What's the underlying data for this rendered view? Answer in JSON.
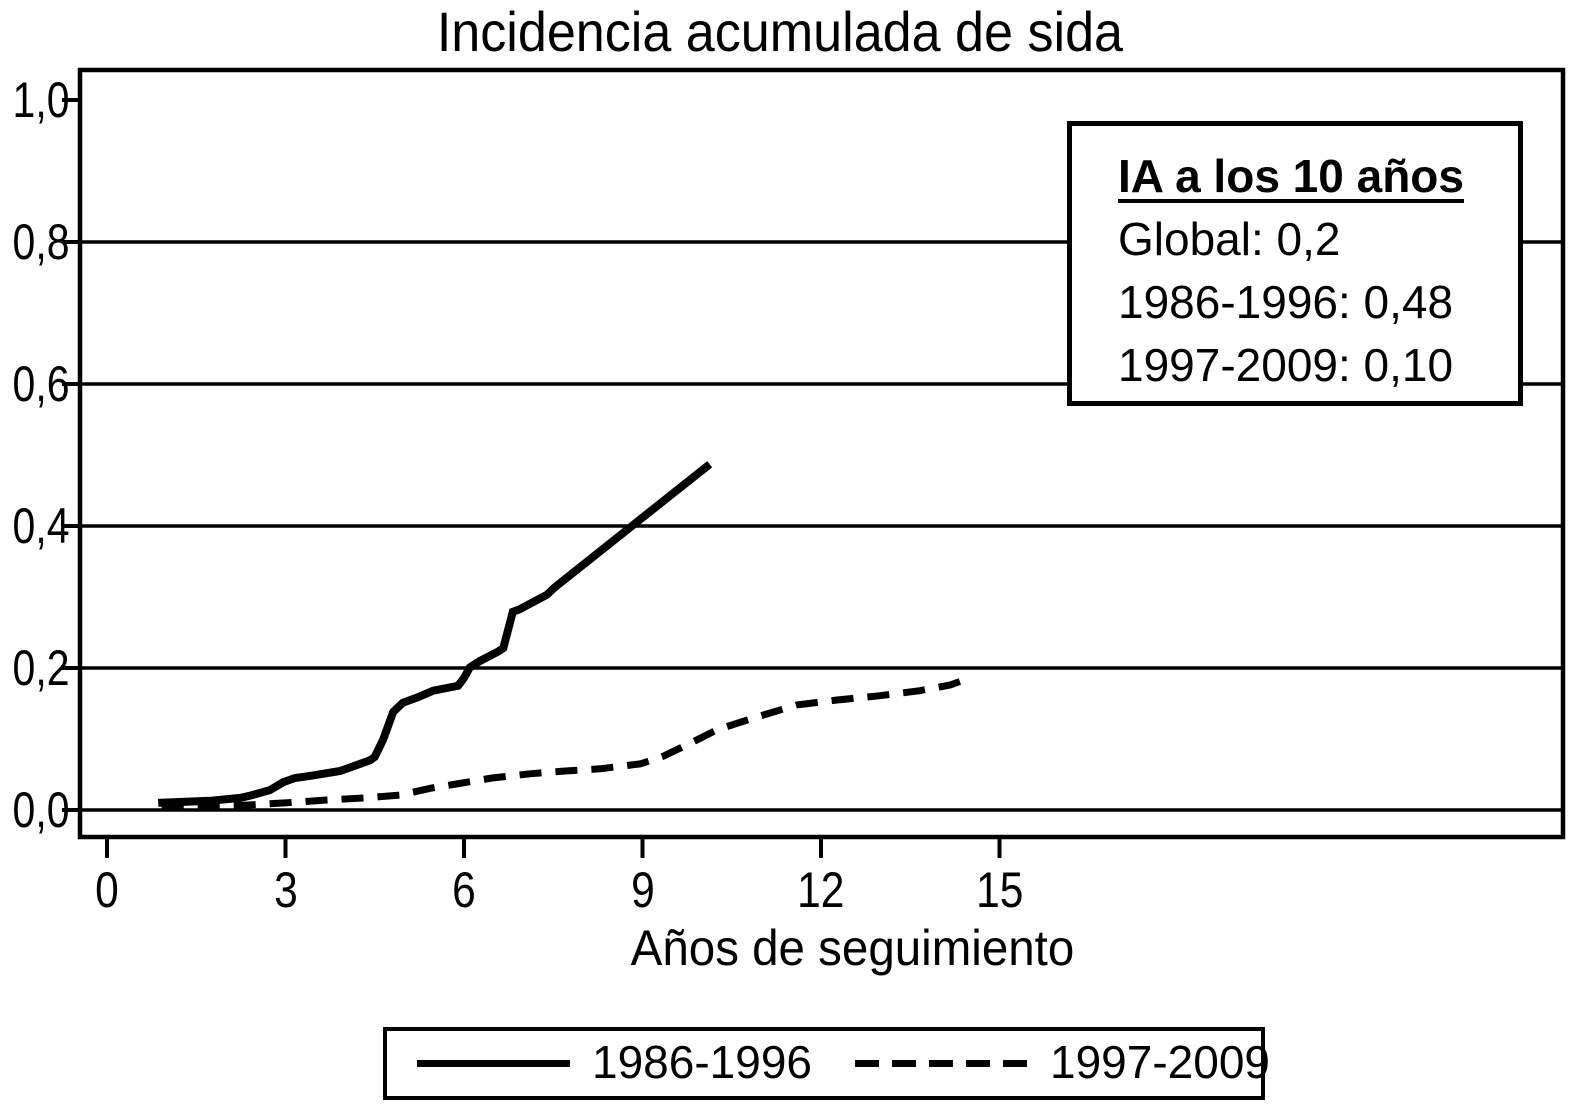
{
  "chart": {
    "title": "Incidencia acumulada de sida",
    "xlabel": "Años de seguimiento"
  },
  "annotation": {
    "title": "IA a los 10 años",
    "lines": [
      "Global: 0,2",
      "1986-1996: 0,48",
      "1997-2009: 0,10"
    ]
  },
  "legend": {
    "items": [
      {
        "label": "1986-1996",
        "style": "solid"
      },
      {
        "label": "1997-2009",
        "style": "dashed"
      }
    ]
  },
  "colors": {
    "foreground": "#000000",
    "background": "#ffffff"
  },
  "chart_data": {
    "type": "line",
    "title": "Incidencia acumulada de sida",
    "xlabel": "Años de seguimiento",
    "ylabel": "",
    "xlim": [
      0,
      24.5
    ],
    "ylim": [
      0.0,
      1.0
    ],
    "grid": "horizontal",
    "legend_position": "bottom",
    "xticks": [
      0,
      3,
      6,
      9,
      12,
      15
    ],
    "yticks": [
      {
        "value": 1.0,
        "label": "1,0",
        "grid": false
      },
      {
        "value": 0.8,
        "label": "0,8",
        "grid": true
      },
      {
        "value": 0.6,
        "label": "0,6",
        "grid": true
      },
      {
        "value": 0.4,
        "label": "0,4",
        "grid": true
      },
      {
        "value": 0.2,
        "label": "0,2",
        "grid": true
      },
      {
        "value": 0.0,
        "label": "0,0",
        "grid": true
      }
    ],
    "series": [
      {
        "name": "1986-1996",
        "style": "solid",
        "points": [
          [
            0.86,
            0.01
          ],
          [
            1.73,
            0.013
          ],
          [
            2.24,
            0.017
          ],
          [
            2.44,
            0.021
          ],
          [
            2.74,
            0.028
          ],
          [
            2.96,
            0.039
          ],
          [
            3.16,
            0.045
          ],
          [
            3.41,
            0.048
          ],
          [
            3.92,
            0.055
          ],
          [
            4.42,
            0.07
          ],
          [
            4.5,
            0.075
          ],
          [
            4.64,
            0.099
          ],
          [
            4.81,
            0.138
          ],
          [
            4.97,
            0.151
          ],
          [
            5.23,
            0.159
          ],
          [
            5.48,
            0.168
          ],
          [
            5.9,
            0.175
          ],
          [
            6.0,
            0.186
          ],
          [
            6.1,
            0.201
          ],
          [
            6.27,
            0.21
          ],
          [
            6.57,
            0.223
          ],
          [
            6.66,
            0.228
          ],
          [
            6.82,
            0.279
          ],
          [
            6.94,
            0.283
          ],
          [
            7.39,
            0.303
          ],
          [
            7.53,
            0.314
          ],
          [
            10.13,
            0.487
          ]
        ]
      },
      {
        "name": "1997-2009",
        "style": "dashed",
        "points": [
          [
            0.92,
            0.006
          ],
          [
            2.15,
            0.006
          ],
          [
            2.99,
            0.01
          ],
          [
            3.66,
            0.014
          ],
          [
            4.34,
            0.017
          ],
          [
            4.92,
            0.021
          ],
          [
            5.46,
            0.031
          ],
          [
            5.97,
            0.038
          ],
          [
            6.47,
            0.045
          ],
          [
            7.11,
            0.051
          ],
          [
            7.7,
            0.055
          ],
          [
            8.29,
            0.058
          ],
          [
            8.96,
            0.065
          ],
          [
            9.33,
            0.075
          ],
          [
            9.63,
            0.087
          ],
          [
            9.97,
            0.101
          ],
          [
            10.25,
            0.113
          ],
          [
            10.92,
            0.131
          ],
          [
            11.6,
            0.148
          ],
          [
            12.27,
            0.155
          ],
          [
            12.99,
            0.161
          ],
          [
            13.66,
            0.168
          ],
          [
            14.17,
            0.176
          ],
          [
            14.47,
            0.185
          ]
        ]
      }
    ]
  }
}
